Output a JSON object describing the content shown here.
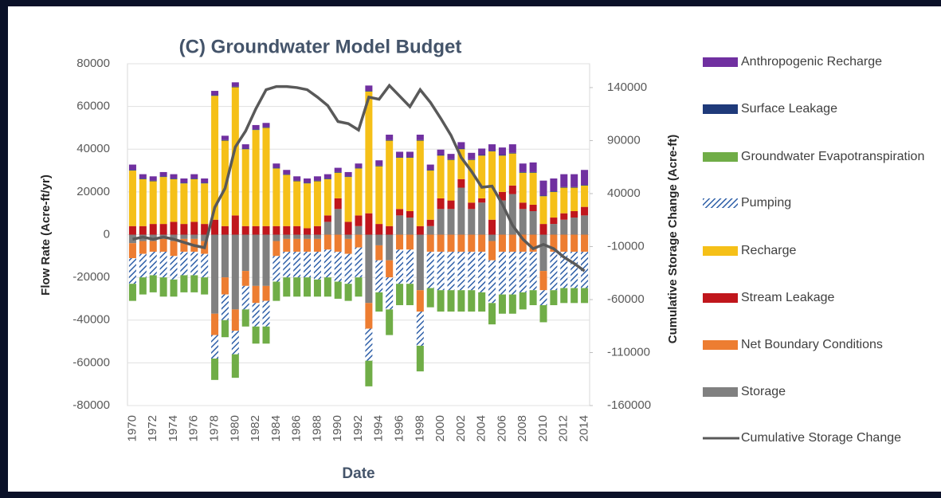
{
  "chart_data": {
    "type": "stacked_bar_line",
    "title": "(C) Groundwater Model Budget",
    "y_label": "Flow Rate (Acre-ft/yr)",
    "y2_label": "Cumulative Storage Change (Acre-ft)",
    "x_label": "Date",
    "categories": [
      "1970",
      null,
      "1972",
      null,
      "1974",
      null,
      "1976",
      null,
      "1978",
      null,
      "1980",
      null,
      "1982",
      null,
      "1984",
      null,
      "1986",
      null,
      "1988",
      null,
      "1990",
      null,
      "1992",
      null,
      "1994",
      null,
      "1996",
      null,
      "1998",
      null,
      "2000",
      null,
      "2002",
      null,
      "2004",
      null,
      "2006",
      null,
      "2008",
      null,
      "2010",
      null,
      "2012",
      null,
      "2014"
    ],
    "ylim": [
      -80000,
      80000
    ],
    "yticks": [
      -80000,
      -60000,
      -40000,
      -20000,
      0,
      20000,
      40000,
      60000,
      80000
    ],
    "y2lim": [
      -160000,
      162500
    ],
    "y2ticks": [
      -160000,
      -110000,
      -60000,
      -10000,
      40000,
      90000,
      140000
    ],
    "series": [
      {
        "name": "Anthropogenic Recharge",
        "color": "#7030a0",
        "values": [
          2500,
          2000,
          2000,
          2000,
          2000,
          2000,
          2000,
          2000,
          2000,
          2000,
          2000,
          2000,
          2000,
          2000,
          2000,
          2000,
          2000,
          2000,
          2000,
          2000,
          2000,
          2000,
          2000,
          2500,
          2500,
          2500,
          2500,
          2500,
          2500,
          2500,
          2500,
          2500,
          3000,
          3000,
          3000,
          3000,
          3500,
          4000,
          4000,
          4500,
          7000,
          6000,
          6000,
          6000,
          7000
        ]
      },
      {
        "name": "Surface Leakage",
        "color": "#1f3a7a",
        "values": [
          300,
          300,
          300,
          300,
          300,
          300,
          300,
          300,
          300,
          300,
          300,
          300,
          300,
          300,
          300,
          300,
          300,
          300,
          300,
          300,
          300,
          300,
          300,
          300,
          300,
          300,
          300,
          300,
          300,
          300,
          300,
          300,
          300,
          300,
          300,
          300,
          300,
          300,
          300,
          300,
          300,
          300,
          300,
          300,
          300
        ]
      },
      {
        "name": "Groundwater Evapotranspiration",
        "color": "#70ad47",
        "values": [
          -8000,
          -8000,
          -8000,
          -9000,
          -8000,
          -8000,
          -8000,
          -8000,
          -10000,
          -8000,
          -11000,
          -8000,
          -8000,
          -8000,
          -9000,
          -9000,
          -9000,
          -9000,
          -8000,
          -9000,
          -8000,
          -8000,
          -9000,
          -12000,
          -9000,
          -12000,
          -10000,
          -10000,
          -12000,
          -9000,
          -10000,
          -10000,
          -10000,
          -10000,
          -9000,
          -10000,
          -9000,
          -9000,
          -8000,
          -7000,
          -8000,
          -7000,
          -7000,
          -7000,
          -7000
        ]
      },
      {
        "name": "Pumping",
        "color": "#2e5fa8",
        "hatch": true,
        "values": [
          -12000,
          -11000,
          -11000,
          -12000,
          -11000,
          -11000,
          -11000,
          -11000,
          -11000,
          -12000,
          -11000,
          -11000,
          -11000,
          -12000,
          -12000,
          -12000,
          -12000,
          -12000,
          -13000,
          -13000,
          -14000,
          -14000,
          -14000,
          -15000,
          -15000,
          -15000,
          -16000,
          -16000,
          -16000,
          -17000,
          -18000,
          -18000,
          -18000,
          -18000,
          -19000,
          -20000,
          -20000,
          -20000,
          -19000,
          -18000,
          -7000,
          -18000,
          -17000,
          -17000,
          -17000
        ]
      },
      {
        "name": "Recharge",
        "color": "#f5c018",
        "values": [
          26000,
          22000,
          20000,
          22000,
          20000,
          19000,
          20000,
          19000,
          58000,
          40000,
          60000,
          36000,
          45000,
          46000,
          27000,
          24000,
          21000,
          21000,
          21000,
          17000,
          12000,
          21000,
          22000,
          57000,
          27000,
          40000,
          24000,
          25000,
          40000,
          23000,
          20000,
          19000,
          14000,
          20000,
          20000,
          32000,
          17000,
          15000,
          14000,
          15000,
          13000,
          12000,
          12000,
          11000,
          10000
        ]
      },
      {
        "name": "Stream Leakage",
        "color": "#c0161c",
        "values": [
          4000,
          4000,
          5000,
          5000,
          6000,
          5000,
          6000,
          5000,
          7000,
          4000,
          9000,
          4000,
          4000,
          4000,
          4000,
          4000,
          4000,
          3000,
          4000,
          3000,
          5000,
          6000,
          5000,
          10000,
          5000,
          4000,
          3000,
          3000,
          4000,
          3000,
          5000,
          4000,
          4000,
          3000,
          2000,
          7000,
          4000,
          4000,
          3000,
          3000,
          5000,
          3000,
          3000,
          3000,
          4000
        ]
      },
      {
        "name": "Net Boundary Conditions",
        "color": "#ed7d31",
        "values": [
          -7000,
          -6000,
          -5000,
          -6000,
          -7000,
          -6000,
          -6000,
          -6000,
          -10000,
          -8000,
          -10000,
          -7000,
          -8000,
          -7000,
          -7000,
          -6000,
          -6000,
          -6000,
          -6000,
          -7000,
          -8000,
          -7000,
          -6000,
          -12000,
          -7000,
          -8000,
          -7000,
          -7000,
          -10000,
          -8000,
          -8000,
          -8000,
          -8000,
          -8000,
          -8000,
          -9000,
          -8000,
          -8000,
          -8000,
          -8000,
          -9000,
          -8000,
          -8000,
          -8000,
          -8000
        ]
      },
      {
        "name": "Storage",
        "color": "#808080",
        "values": [
          -4000,
          -3000,
          -3000,
          -2000,
          -3000,
          -2000,
          -2000,
          -3000,
          -37000,
          -20000,
          -35000,
          -17000,
          -24000,
          -24000,
          -3000,
          -2000,
          -2000,
          -2000,
          -2000,
          6000,
          12000,
          -2000,
          4000,
          -32000,
          -5000,
          -12000,
          9000,
          8000,
          -26000,
          4000,
          12000,
          12000,
          22000,
          12000,
          15000,
          -3000,
          16000,
          19000,
          12000,
          11000,
          -17000,
          5000,
          7000,
          8000,
          9000
        ]
      },
      {
        "name": "Cumulative Storage Change",
        "color": "#595959",
        "axis": "y2",
        "values": [
          -3000,
          -1000,
          -3000,
          -1000,
          -3000,
          -6000,
          -9000,
          -11000,
          27000,
          45000,
          84000,
          99000,
          120000,
          138000,
          141000,
          141000,
          140000,
          138000,
          131000,
          123000,
          108000,
          106000,
          100000,
          131000,
          129000,
          142000,
          132000,
          122000,
          138000,
          126000,
          111000,
          95000,
          74000,
          61000,
          46000,
          47000,
          30000,
          10000,
          -3000,
          -12000,
          -8000,
          -12000,
          -20000,
          -26000,
          -33000
        ]
      }
    ]
  }
}
